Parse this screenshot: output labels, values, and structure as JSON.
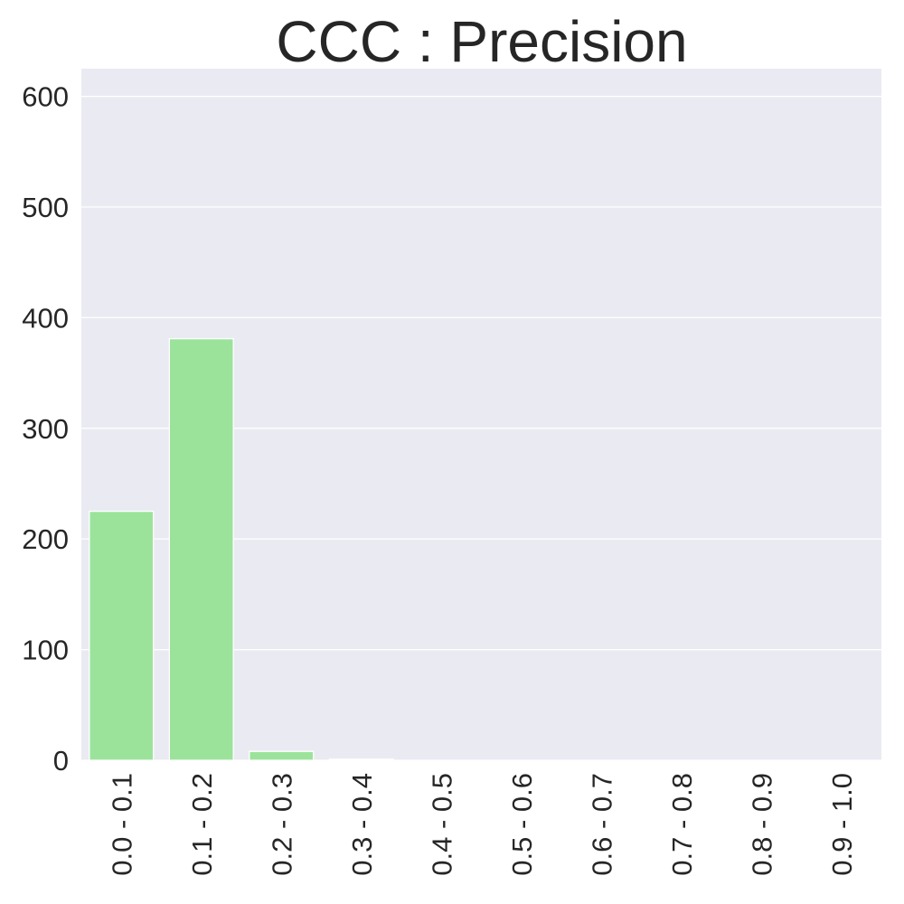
{
  "chart_data": {
    "type": "bar",
    "title": "CCC : Precision",
    "xlabel": "",
    "ylabel": "",
    "categories": [
      "0.0 - 0.1",
      "0.1 - 0.2",
      "0.2 - 0.3",
      "0.3 - 0.4",
      "0.4 - 0.5",
      "0.5 - 0.6",
      "0.6 - 0.7",
      "0.7 - 0.8",
      "0.8 - 0.9",
      "0.9 - 1.0"
    ],
    "values": [
      225,
      381,
      8,
      1,
      0,
      0,
      0,
      0,
      0,
      0
    ],
    "ylim": [
      0,
      625
    ],
    "yticks": [
      0,
      100,
      200,
      300,
      400,
      500,
      600
    ],
    "grid": true,
    "legend": "none",
    "colors": {
      "bar": "#9be39b",
      "background": "#eaeaf2",
      "grid": "#ffffff",
      "text": "#262626"
    }
  }
}
